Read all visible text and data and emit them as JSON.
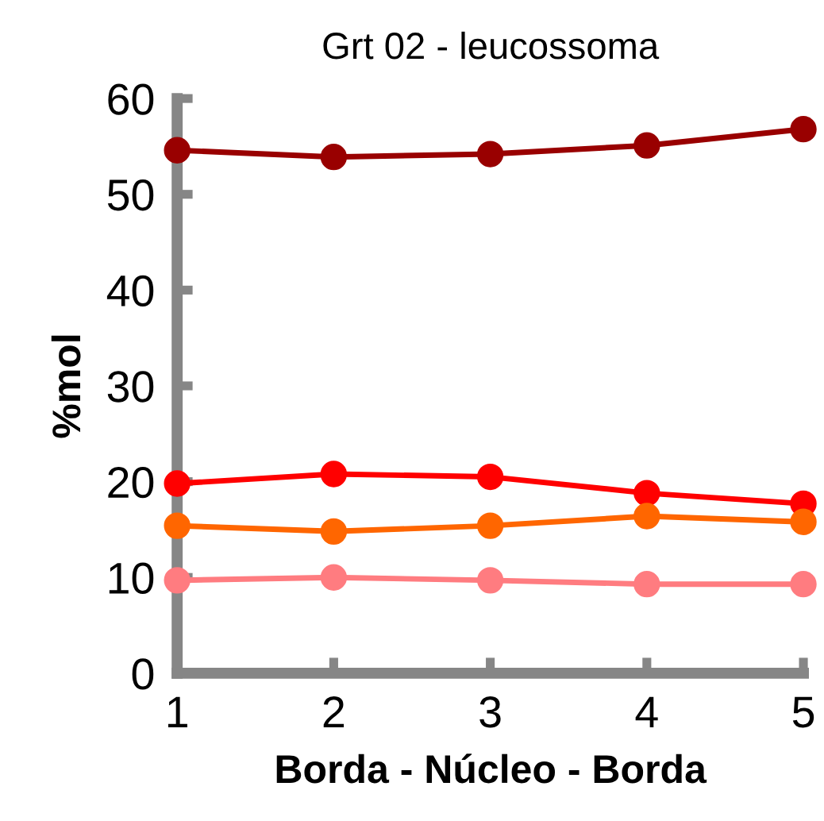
{
  "chart_data": {
    "type": "line",
    "title": "Grt 02 - leucossoma",
    "xlabel": "Borda - Núcleo - Borda",
    "ylabel": "%mol",
    "x": [
      1,
      2,
      3,
      4,
      5
    ],
    "xlim": [
      1,
      5
    ],
    "xticks": [
      1,
      2,
      3,
      4,
      5
    ],
    "ylim": [
      0,
      60
    ],
    "yticks": [
      0,
      10,
      20,
      30,
      40,
      50,
      60
    ],
    "marker": "circle",
    "grid": false,
    "legend": false,
    "series": [
      {
        "color": "#990000",
        "values": [
          54.6,
          53.9,
          54.2,
          55.1,
          56.8
        ]
      },
      {
        "color": "#ff0000",
        "values": [
          19.8,
          20.8,
          20.5,
          18.8,
          17.7
        ]
      },
      {
        "color": "#ff6600",
        "values": [
          15.4,
          14.8,
          15.4,
          16.4,
          15.8
        ]
      },
      {
        "color": "#ff7c80",
        "values": [
          9.7,
          10.0,
          9.7,
          9.3,
          9.3
        ]
      }
    ]
  }
}
